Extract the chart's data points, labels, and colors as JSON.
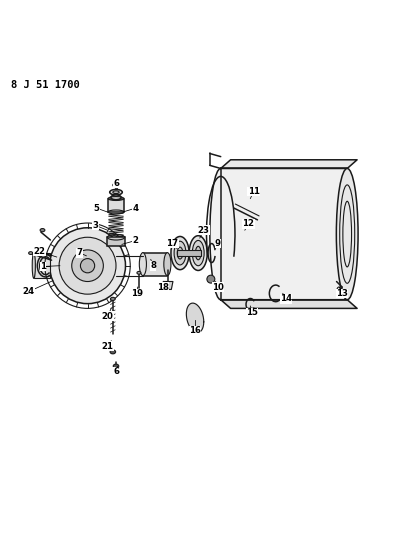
{
  "title": "8 J 51 1700",
  "bg": "#ffffff",
  "lc": "#1a1a1a",
  "fig_w": 3.98,
  "fig_h": 5.33,
  "dpi": 100,
  "parts": [
    [
      1,
      0.105,
      0.5,
      0.148,
      0.502
    ],
    [
      2,
      0.34,
      0.566,
      0.305,
      0.556
    ],
    [
      3,
      0.238,
      0.604,
      0.268,
      0.592
    ],
    [
      4,
      0.34,
      0.648,
      0.308,
      0.638
    ],
    [
      5,
      0.24,
      0.648,
      0.268,
      0.638
    ],
    [
      6,
      0.292,
      0.71,
      0.292,
      0.698
    ],
    [
      7,
      0.197,
      0.535,
      0.215,
      0.527
    ],
    [
      8,
      0.384,
      0.502,
      0.378,
      0.518
    ],
    [
      9,
      0.548,
      0.558,
      0.542,
      0.546
    ],
    [
      10,
      0.548,
      0.448,
      0.542,
      0.462
    ],
    [
      11,
      0.638,
      0.69,
      0.63,
      0.672
    ],
    [
      12,
      0.625,
      0.608,
      0.616,
      0.592
    ],
    [
      13,
      0.862,
      0.432,
      0.855,
      0.448
    ],
    [
      14,
      0.72,
      0.418,
      0.712,
      0.432
    ],
    [
      15,
      0.634,
      0.384,
      0.63,
      0.4
    ],
    [
      16,
      0.49,
      0.338,
      0.49,
      0.364
    ],
    [
      17,
      0.432,
      0.558,
      0.444,
      0.546
    ],
    [
      18,
      0.408,
      0.448,
      0.418,
      0.462
    ],
    [
      19,
      0.342,
      0.432,
      0.345,
      0.448
    ],
    [
      20,
      0.268,
      0.374,
      0.278,
      0.394
    ],
    [
      21,
      0.268,
      0.298,
      0.278,
      0.312
    ],
    [
      22,
      0.097,
      0.538,
      0.14,
      0.524
    ],
    [
      23,
      0.512,
      0.592,
      0.502,
      0.572
    ],
    [
      24,
      0.068,
      0.436,
      0.13,
      0.464
    ],
    [
      6,
      0.292,
      0.234,
      0.292,
      0.248
    ]
  ]
}
